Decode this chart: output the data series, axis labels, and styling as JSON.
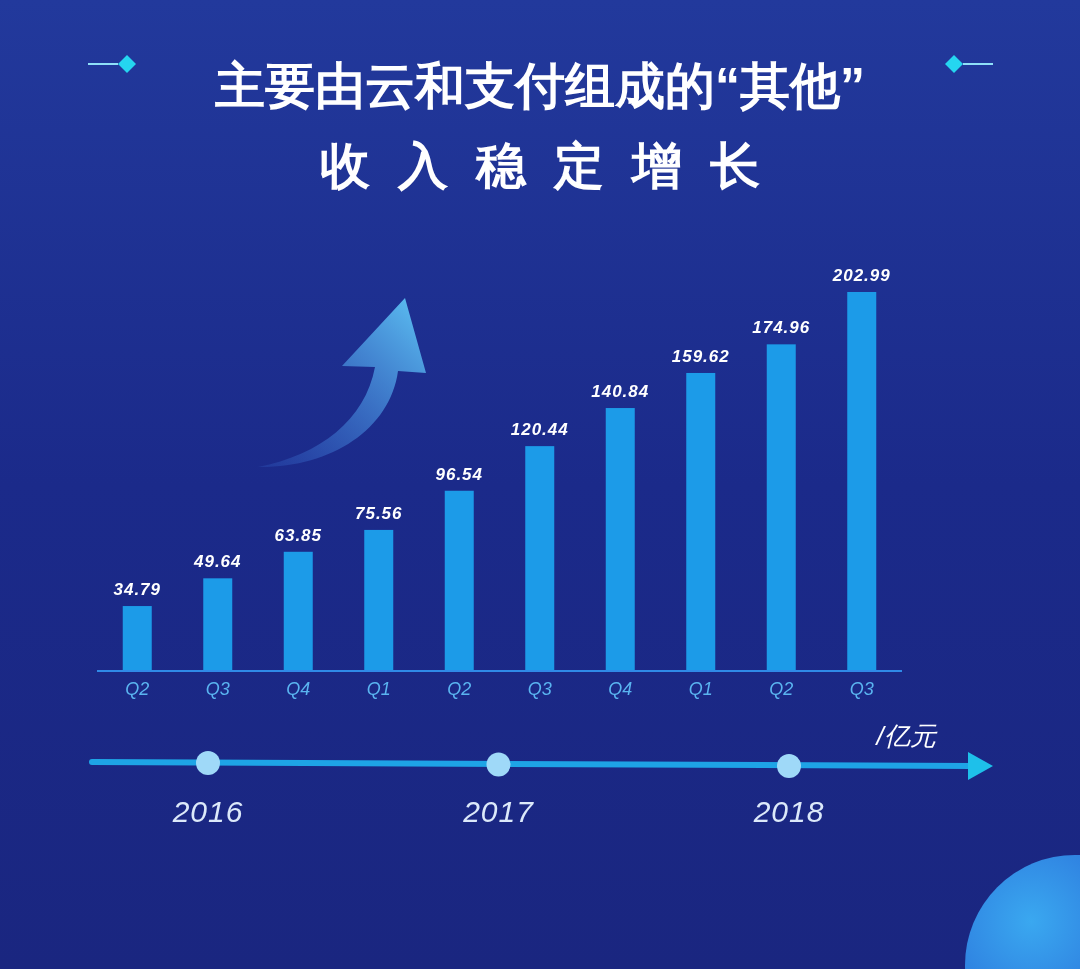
{
  "chart_data": {
    "type": "bar",
    "title": "主要由云和支付组成的“其他”\n收入稳定增长",
    "ylabel": "/亿元",
    "categories": [
      "Q2",
      "Q3",
      "Q4",
      "Q1",
      "Q2",
      "Q3",
      "Q4",
      "Q1",
      "Q2",
      "Q3"
    ],
    "values": [
      34.79,
      49.64,
      63.85,
      75.56,
      96.54,
      120.44,
      140.84,
      159.62,
      174.96,
      202.99
    ],
    "color": "#1c9be8",
    "data_labels": true,
    "annotations": [
      "2016",
      "2017",
      "2018"
    ]
  }
}
